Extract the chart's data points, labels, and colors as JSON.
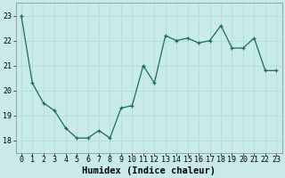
{
  "x": [
    0,
    1,
    2,
    3,
    4,
    5,
    6,
    7,
    8,
    9,
    10,
    11,
    12,
    13,
    14,
    15,
    16,
    17,
    18,
    19,
    20,
    21,
    22,
    23
  ],
  "y": [
    23.0,
    20.3,
    19.5,
    19.2,
    18.5,
    18.1,
    18.1,
    18.4,
    18.1,
    19.3,
    19.4,
    21.0,
    20.3,
    22.2,
    22.0,
    22.1,
    21.9,
    22.0,
    22.6,
    21.7,
    21.7,
    22.1,
    20.8,
    20.8
  ],
  "xlabel": "Humidex (Indice chaleur)",
  "ylim": [
    17.5,
    23.5
  ],
  "xlim": [
    -0.5,
    23.5
  ],
  "yticks": [
    18,
    19,
    20,
    21,
    22,
    23
  ],
  "line_color": "#1a6b5a",
  "marker_color": "#1a6b5a",
  "bg_color": "#c8eaea",
  "grid_color": "#b0d8d8",
  "tick_label_fontsize": 6.0,
  "xlabel_fontsize": 7.5,
  "spine_color": "#888888"
}
